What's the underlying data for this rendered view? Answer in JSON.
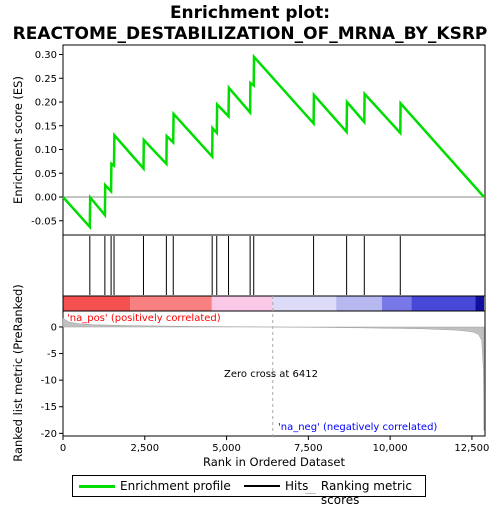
{
  "title_line1": "Enrichment plot:",
  "title_line2": "REACTOME_DESTABILIZATION_OF_MRNA_BY_KSRP",
  "colors": {
    "profile": "#00dd00",
    "hits": "#000000",
    "metric": "#c0c0c0",
    "pos_text": "#ff0000",
    "neg_text": "#0000ff",
    "zero_line": "#aaaaaa"
  },
  "chart_data": {
    "type": "line",
    "es_panel": {
      "ylabel": "Enrichment score (ES)",
      "ylim": [
        -0.08,
        0.32
      ],
      "yticks": [
        "-0.05",
        "0.00",
        "0.05",
        "0.10",
        "0.15",
        "0.20",
        "0.25",
        "0.30"
      ],
      "ytick_values": [
        -0.05,
        0.0,
        0.05,
        0.1,
        0.15,
        0.2,
        0.25,
        0.3
      ],
      "profile_x": [
        0,
        820,
        830,
        1280,
        1290,
        1470,
        1480,
        1560,
        1570,
        2460,
        2470,
        3160,
        3170,
        3370,
        3380,
        4560,
        4570,
        4700,
        4710,
        5060,
        5070,
        5720,
        5730,
        5830,
        5840,
        7660,
        7670,
        8670,
        8680,
        9210,
        9220,
        10310,
        10320,
        12870
      ],
      "profile_y": [
        0.0,
        -0.063,
        -0.001,
        -0.038,
        0.025,
        0.012,
        0.07,
        0.066,
        0.13,
        0.06,
        0.12,
        0.07,
        0.128,
        0.115,
        0.175,
        0.085,
        0.145,
        0.135,
        0.195,
        0.17,
        0.23,
        0.178,
        0.24,
        0.235,
        0.295,
        0.155,
        0.215,
        0.137,
        0.2,
        0.158,
        0.217,
        0.135,
        0.197,
        0.0
      ]
    },
    "hits": [
      820,
      1280,
      1470,
      1560,
      2460,
      3160,
      3370,
      4560,
      4700,
      5060,
      5720,
      5830,
      7660,
      8670,
      9210,
      10310
    ],
    "metric_panel": {
      "ylabel": "Ranked list metric (PreRanked)",
      "ylim": [
        -20.5,
        3
      ],
      "yticks": [
        "-20",
        "-15",
        "-10",
        "-5",
        "0"
      ],
      "ytick_values": [
        -20,
        -15,
        -10,
        -5,
        0
      ],
      "zero_cross_label": "Zero cross at 6412",
      "zero_cross": 6412,
      "pos_label": "'na_pos' (positively correlated)",
      "neg_label": "'na_neg' (negatively correlated)",
      "metric_x": [
        0,
        200,
        500,
        1000,
        2000,
        4000,
        6412,
        9000,
        11000,
        12000,
        12500,
        12700,
        12800,
        12850,
        12870
      ],
      "metric_y": [
        1.6,
        0.9,
        0.6,
        0.4,
        0.25,
        0.1,
        0.0,
        -0.15,
        -0.35,
        -0.6,
        -0.9,
        -1.4,
        -2.5,
        -8.0,
        -19.5
      ]
    },
    "xlabel": "Rank in Ordered Dataset",
    "xlim": [
      0,
      12900
    ],
    "xticks": [
      "0",
      "2,500",
      "5,000",
      "7,500",
      "10,000",
      "12,500"
    ],
    "xtick_values": [
      0,
      2500,
      5000,
      7500,
      10000,
      12500
    ],
    "color_bar": [
      {
        "to": 2050,
        "color": "#f45050"
      },
      {
        "to": 4550,
        "color": "#f88080"
      },
      {
        "to": 6412,
        "color": "#fbc8e8"
      },
      {
        "to": 8350,
        "color": "#dcdcf8"
      },
      {
        "to": 9750,
        "color": "#b8b8f0"
      },
      {
        "to": 10650,
        "color": "#7878e8"
      },
      {
        "to": 12600,
        "color": "#4848d8"
      },
      {
        "to": 12870,
        "color": "#1010a0"
      }
    ]
  },
  "legend": {
    "profile": "Enrichment profile",
    "hits": "Hits",
    "metric": "Ranking metric scores"
  }
}
